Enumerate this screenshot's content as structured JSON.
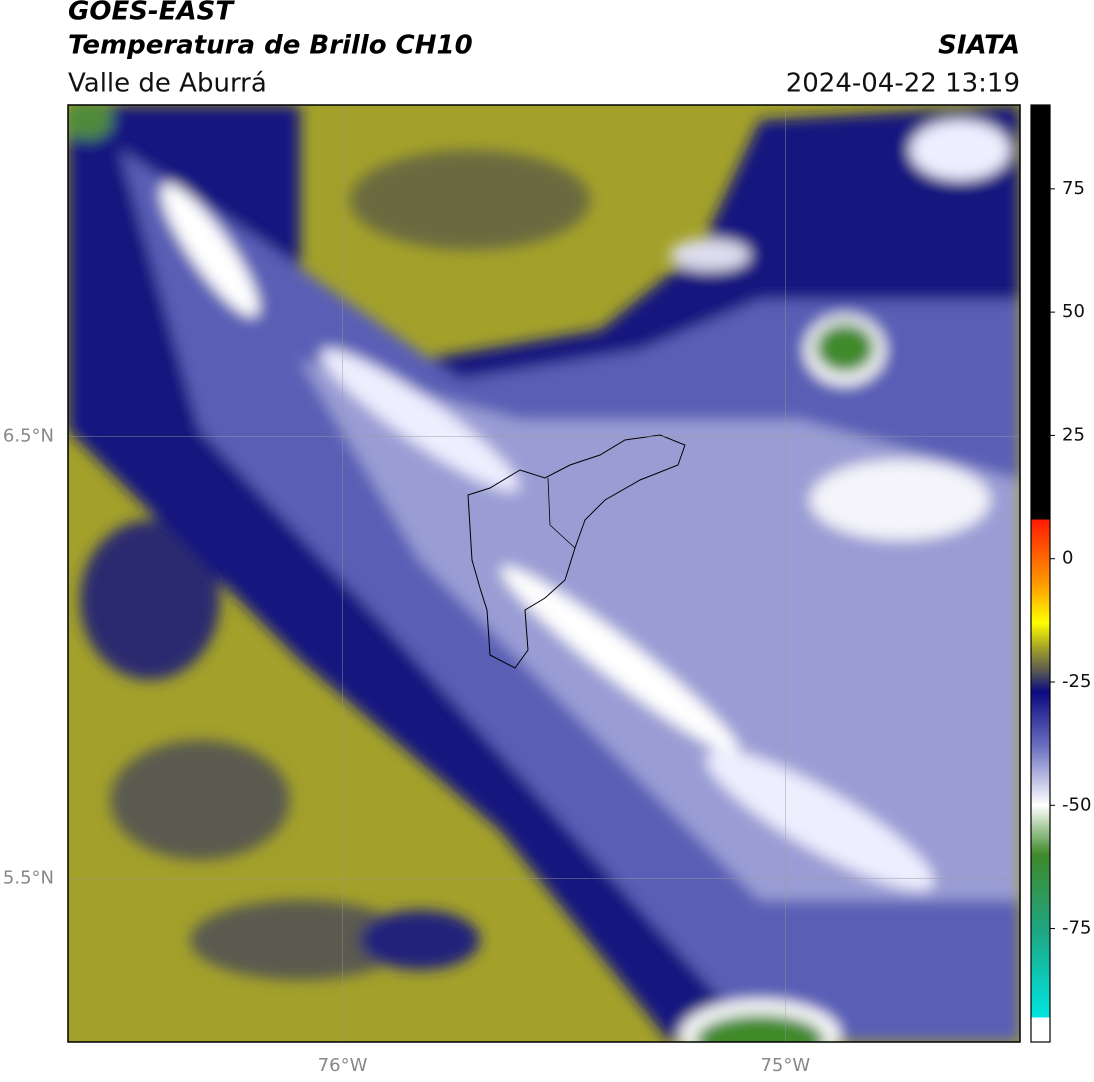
{
  "header": {
    "title": "GOES-EAST",
    "subtitle": "Temperatura de Brillo CH10",
    "region": "Valle de Aburrá",
    "source": "SIATA",
    "datetime": "2024-04-22 13:19"
  },
  "map": {
    "xlim": [
      -76.62,
      -74.47
    ],
    "ylim": [
      5.13,
      7.25
    ],
    "xticks": [
      {
        "value": -76,
        "label": "76°W"
      },
      {
        "value": -75,
        "label": "75°W"
      }
    ],
    "yticks": [
      {
        "value": 6.5,
        "label": "6.5°N"
      },
      {
        "value": 5.5,
        "label": "5.5°N"
      }
    ],
    "grid": true
  },
  "colorbar": {
    "lim": [
      -98,
      92
    ],
    "ticks": [
      75,
      50,
      25,
      0,
      -25,
      -50,
      -75
    ],
    "stops": [
      {
        "value": 92,
        "color": "#000000"
      },
      {
        "value": 8,
        "color": "#000000"
      },
      {
        "value": 8,
        "color": "#ff1a00"
      },
      {
        "value": -5,
        "color": "#ff9900"
      },
      {
        "value": -13,
        "color": "#ffff00"
      },
      {
        "value": -18,
        "color": "#a6a326"
      },
      {
        "value": -23,
        "color": "#555555"
      },
      {
        "value": -27,
        "color": "#0a0a80"
      },
      {
        "value": -38,
        "color": "#6a6fc0"
      },
      {
        "value": -50,
        "color": "#ffffff"
      },
      {
        "value": -60,
        "color": "#3f8a2a"
      },
      {
        "value": -75,
        "color": "#1fa580"
      },
      {
        "value": -93,
        "color": "#00e5e0"
      },
      {
        "value": -93,
        "color": "#ffffff"
      },
      {
        "value": -98,
        "color": "#ffffff"
      }
    ]
  }
}
